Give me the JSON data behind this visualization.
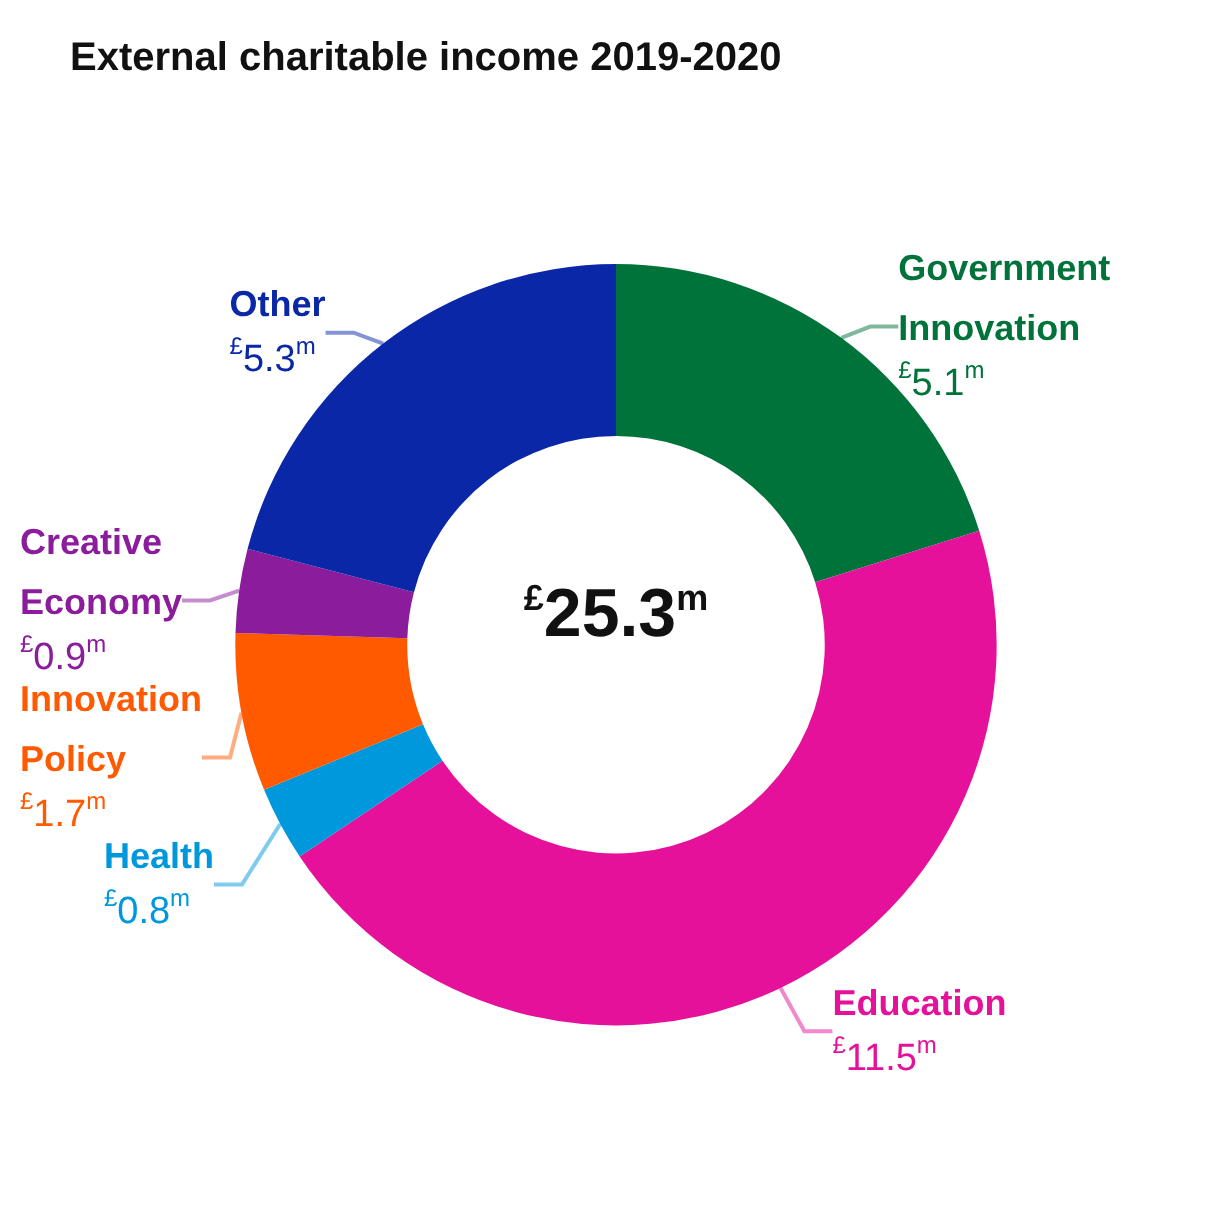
{
  "chart_data": {
    "type": "donut",
    "title": "External charitable income 2019-2020",
    "categories": [
      "Government Innovation",
      "Education",
      "Health",
      "Innovation Policy",
      "Creative Economy",
      "Other"
    ],
    "values": [
      5.1,
      11.5,
      0.8,
      1.7,
      0.9,
      5.3
    ],
    "colors": [
      "#00733a",
      "#e5119a",
      "#0098dd",
      "#ff5a00",
      "#8b1c9c",
      "#0a27a8"
    ],
    "value_labels": [
      "$^{£}$5.1$^{m}$",
      "$^{£}$11.5$^{m}$",
      "$^{£}$0.8$^{m}$",
      "$^{£}$1.7$^{m}$",
      "$^{£}$0.9$^{m}$",
      "$^{£}$5.3$^{m}$"
    ],
    "annotations": [
      "$^{£}$25.3$^{m}$"
    ]
  }
}
